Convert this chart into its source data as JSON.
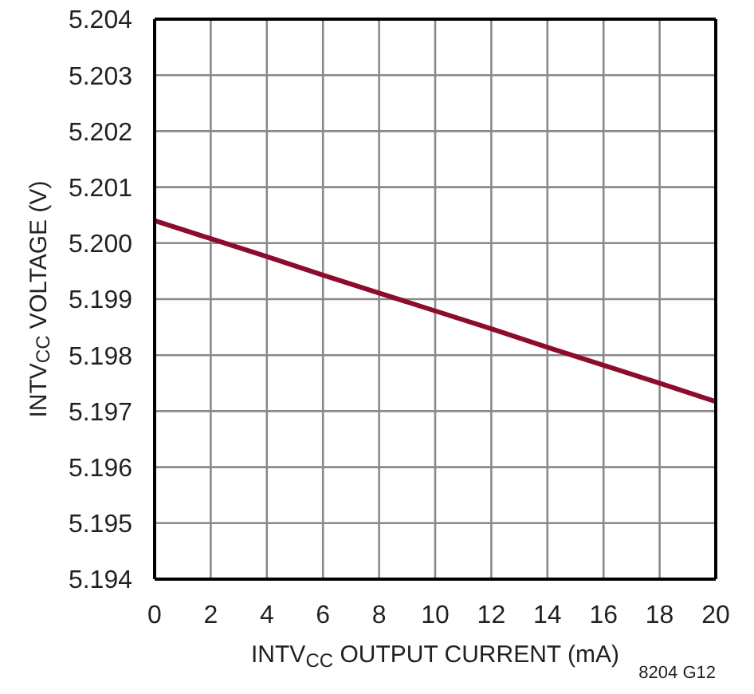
{
  "chart_data": {
    "type": "line",
    "xlabel": "INTV$_{CC}$ OUTPUT CURRENT (mA)",
    "ylabel": "INTV$_{CC}$ VOLTAGE (V)",
    "annotations": [
      "8204 G12"
    ],
    "x": [
      0,
      2,
      4,
      6,
      8,
      10,
      12,
      14,
      16,
      18,
      20
    ],
    "series": [
      {
        "color": "#8c0c2e",
        "values": [
          5.2004,
          5.20008,
          5.19976,
          5.19943,
          5.19911,
          5.19879,
          5.19847,
          5.19814,
          5.19782,
          5.1975,
          5.19717
        ]
      }
    ],
    "xlim": [
      0,
      20
    ],
    "xticks": [
      0,
      2,
      4,
      6,
      8,
      10,
      12,
      14,
      16,
      18,
      20
    ],
    "ylim": [
      5.194,
      5.204
    ],
    "yticks": [
      5.194,
      5.195,
      5.196,
      5.197,
      5.198,
      5.199,
      {
        "value": 5.2,
        "label": "5.200"
      },
      5.201,
      5.202,
      5.203,
      5.204
    ],
    "grid": true,
    "marker": "none",
    "line_style": "solid"
  }
}
